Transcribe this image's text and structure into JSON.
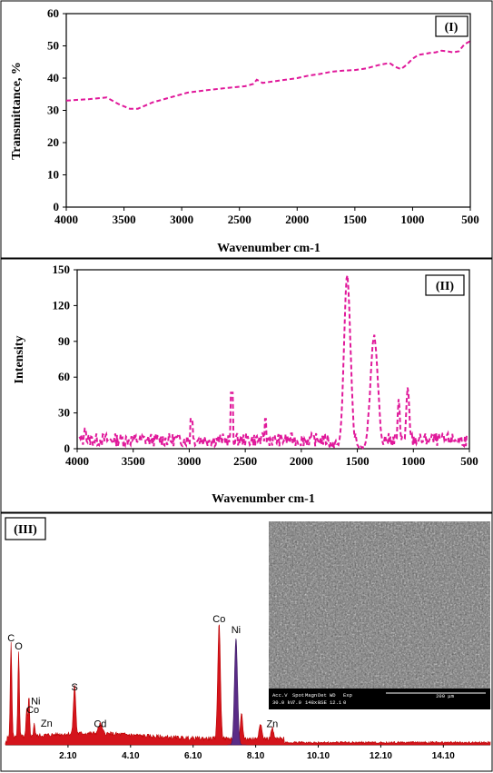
{
  "chart_data": [
    {
      "type": "line",
      "panel_tag": "(I)",
      "xlabel": "Wavenumber cm-1",
      "ylabel": "Transmittance, %",
      "xlim": [
        4000,
        500
      ],
      "ylim": [
        0,
        60
      ],
      "x_ticks": [
        "4000",
        "3500",
        "3000",
        "2500",
        "2000",
        "1500",
        "1000",
        "500"
      ],
      "y_ticks": [
        "0",
        "10",
        "20",
        "30",
        "40",
        "50",
        "60"
      ],
      "color": "#e0189a",
      "series": [
        {
          "x": [
            4000,
            3800,
            3650,
            3550,
            3450,
            3380,
            3250,
            3100,
            2950,
            2800,
            2600,
            2450,
            2380,
            2350,
            2300,
            2200,
            2100,
            2000,
            1900,
            1800,
            1700,
            1600,
            1500,
            1400,
            1300,
            1200,
            1150,
            1100,
            1050,
            1000,
            950,
            900,
            850,
            800,
            750,
            700,
            650,
            600,
            550,
            500
          ],
          "y": [
            33,
            33.5,
            34,
            32,
            30.5,
            30.5,
            32.5,
            34,
            35.5,
            36.2,
            37,
            37.5,
            38.2,
            39.5,
            38.5,
            39,
            39.5,
            40,
            40.8,
            41.3,
            42,
            42.3,
            42.5,
            43,
            44,
            44.7,
            43.5,
            42.8,
            44.2,
            46,
            47.2,
            47.5,
            47.8,
            48,
            48.5,
            48.3,
            48,
            48.3,
            50.5,
            51.5
          ]
        }
      ]
    },
    {
      "type": "line",
      "panel_tag": "(II)",
      "xlabel": "Wavenumber cm-1",
      "ylabel": "Intensity",
      "xlim": [
        4000,
        500
      ],
      "ylim": [
        0,
        150
      ],
      "x_ticks": [
        "4000",
        "3500",
        "3000",
        "2500",
        "2000",
        "1500",
        "1000",
        "500"
      ],
      "y_ticks": [
        "0",
        "30",
        "60",
        "90",
        "120",
        "150"
      ],
      "color": "#e0189a",
      "peaks": [
        {
          "x": 1590,
          "y": 142
        },
        {
          "x": 1350,
          "y": 93
        },
        {
          "x": 1130,
          "y": 40
        },
        {
          "x": 1050,
          "y": 48
        },
        {
          "x": 2620,
          "y": 47
        },
        {
          "x": 3930,
          "y": 17
        },
        {
          "x": 2980,
          "y": 25
        },
        {
          "x": 2320,
          "y": 25
        }
      ]
    },
    {
      "type": "area",
      "panel_tag": "(III)",
      "x_ticks": [
        "2.10",
        "4.10",
        "6.10",
        "8.10",
        "10.10",
        "12.10",
        "14.10"
      ],
      "xlim": [
        0.1,
        15.6
      ],
      "fill_color": "#d4141c",
      "ni_fill_color": "#5a2b87",
      "peaks": [
        {
          "label": "C",
          "x": 0.28,
          "h": 0.72
        },
        {
          "label": "O",
          "x": 0.52,
          "h": 0.66
        },
        {
          "label": "Ni",
          "x": 0.85,
          "h": 0.35
        },
        {
          "label": "Co",
          "x": 0.78,
          "h": 0.22
        },
        {
          "label": "Zn",
          "x": 1.02,
          "h": 0.12
        },
        {
          "label": "S",
          "x": 2.31,
          "h": 0.36
        },
        {
          "label": "Cd",
          "x": 3.13,
          "h": 0.09
        },
        {
          "label": "Co",
          "x": 6.93,
          "h": 0.86
        },
        {
          "label": "Ni",
          "x": 7.47,
          "h": 0.78
        },
        {
          "label": "Zn",
          "x": 8.63,
          "h": 0.09
        }
      ],
      "sem_bar": {
        "fields": [
          "Acc.V",
          "Spot",
          "Magn",
          "Det",
          "WD",
          "Exp"
        ],
        "values": [
          "30.0 kV",
          "7.0",
          "148x",
          "BSE",
          "12.1",
          "0"
        ],
        "scale": "200 μm"
      }
    }
  ]
}
